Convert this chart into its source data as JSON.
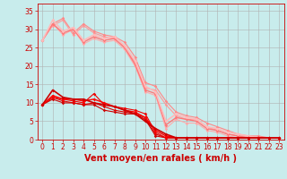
{
  "background_color": "#c8ecec",
  "grid_color": "#b0b0b0",
  "xlabel": "Vent moyen/en rafales ( km/h )",
  "xlim": [
    -0.5,
    23.5
  ],
  "ylim": [
    0,
    37
  ],
  "yticks": [
    0,
    5,
    10,
    15,
    20,
    25,
    30,
    35
  ],
  "xticks": [
    0,
    1,
    2,
    3,
    4,
    5,
    6,
    7,
    8,
    9,
    10,
    11,
    12,
    13,
    14,
    15,
    16,
    17,
    18,
    19,
    20,
    21,
    22,
    23
  ],
  "lines_dark": [
    {
      "x": [
        0,
        1,
        2,
        3,
        4,
        5,
        6,
        7,
        8,
        9,
        10,
        11,
        12,
        13,
        14,
        15,
        16,
        17,
        18,
        19,
        20,
        21,
        22,
        23
      ],
      "y": [
        9.5,
        11.0,
        10.0,
        10.0,
        9.5,
        9.5,
        8.0,
        7.5,
        7.0,
        7.0,
        5.5,
        1.0,
        0.5,
        0.5,
        0.5,
        0.5,
        0.5,
        0.5,
        0.5,
        0.5,
        0.5,
        0.5,
        0.5,
        0.5
      ],
      "color": "#cc0000",
      "lw": 0.8
    },
    {
      "x": [
        0,
        1,
        2,
        3,
        4,
        5,
        6,
        7,
        8,
        9,
        10,
        11,
        12,
        13,
        14,
        15,
        16,
        17,
        18,
        19,
        20,
        21,
        22,
        23
      ],
      "y": [
        9.5,
        11.5,
        10.5,
        10.0,
        9.5,
        10.0,
        9.0,
        8.0,
        7.5,
        7.0,
        6.0,
        1.5,
        0.5,
        0.5,
        0.5,
        0.5,
        0.5,
        0.5,
        0.5,
        0.5,
        0.5,
        0.5,
        0.5,
        0.5
      ],
      "color": "#dd0000",
      "lw": 0.8
    },
    {
      "x": [
        0,
        1,
        2,
        3,
        4,
        5,
        6,
        7,
        8,
        9,
        10,
        11,
        12,
        13,
        14,
        15,
        16,
        17,
        18,
        19,
        20,
        21,
        22,
        23
      ],
      "y": [
        9.5,
        11.5,
        11.0,
        10.5,
        10.0,
        12.5,
        9.5,
        9.0,
        8.5,
        8.0,
        7.0,
        2.0,
        0.5,
        0.5,
        0.5,
        0.5,
        0.5,
        0.5,
        0.5,
        0.5,
        0.5,
        0.5,
        0.5,
        0.5
      ],
      "color": "#ee0000",
      "lw": 0.8
    },
    {
      "x": [
        0,
        1,
        2,
        3,
        4,
        5,
        6,
        7,
        8,
        9,
        10,
        11,
        12,
        13,
        14,
        15,
        16,
        17,
        18,
        19,
        20,
        21,
        22,
        23
      ],
      "y": [
        9.5,
        12.0,
        11.0,
        11.0,
        10.5,
        11.0,
        10.0,
        9.0,
        8.0,
        7.5,
        6.0,
        2.5,
        1.0,
        0.5,
        0.5,
        0.5,
        0.5,
        0.5,
        0.5,
        0.5,
        0.5,
        0.5,
        0.5,
        0.5
      ],
      "color": "#ff0000",
      "lw": 1.0
    },
    {
      "x": [
        0,
        1,
        2,
        3,
        4,
        5,
        6,
        7,
        8,
        9,
        10,
        11,
        12,
        13,
        14,
        15,
        16,
        17,
        18,
        19,
        20,
        21,
        22,
        23
      ],
      "y": [
        9.5,
        13.5,
        11.5,
        11.0,
        11.0,
        10.0,
        9.5,
        9.0,
        8.0,
        7.0,
        5.0,
        3.0,
        1.5,
        0.5,
        0.5,
        0.5,
        0.5,
        0.5,
        0.5,
        0.5,
        0.5,
        0.5,
        0.5,
        0.5
      ],
      "color": "#cc0000",
      "lw": 1.2
    }
  ],
  "lines_light": [
    {
      "x": [
        0,
        1,
        2,
        3,
        4,
        5,
        6,
        7,
        8,
        9,
        10,
        11,
        12,
        13,
        14,
        15,
        16,
        17,
        18,
        19,
        20,
        21,
        22,
        23
      ],
      "y": [
        27.0,
        31.0,
        32.5,
        28.5,
        31.0,
        29.0,
        28.0,
        27.5,
        25.0,
        21.0,
        14.0,
        13.5,
        9.5,
        6.5,
        5.5,
        5.5,
        3.5,
        2.5,
        1.5,
        1.0,
        1.0,
        0.5,
        0.5,
        0.5
      ],
      "color": "#ff9999",
      "lw": 0.8
    },
    {
      "x": [
        0,
        1,
        2,
        3,
        4,
        5,
        6,
        7,
        8,
        9,
        10,
        11,
        12,
        13,
        14,
        15,
        16,
        17,
        18,
        19,
        20,
        21,
        22,
        23
      ],
      "y": [
        27.0,
        31.5,
        33.0,
        29.0,
        31.5,
        29.5,
        28.5,
        28.0,
        26.5,
        22.5,
        15.5,
        14.5,
        10.5,
        7.5,
        6.5,
        6.0,
        4.5,
        3.5,
        2.5,
        1.5,
        1.0,
        1.0,
        0.5,
        0.5
      ],
      "color": "#ff8888",
      "lw": 0.8
    },
    {
      "x": [
        0,
        1,
        2,
        3,
        4,
        5,
        6,
        7,
        8,
        9,
        10,
        11,
        12,
        13,
        14,
        15,
        16,
        17,
        18,
        19,
        20,
        21,
        22,
        23
      ],
      "y": [
        27.0,
        31.5,
        28.5,
        30.0,
        26.0,
        27.5,
        26.5,
        27.0,
        24.5,
        20.0,
        13.0,
        12.0,
        3.0,
        5.5,
        4.5,
        4.5,
        2.5,
        2.0,
        1.0,
        0.5,
        0.5,
        0.5,
        0.5,
        0.5
      ],
      "color": "#ffaaaa",
      "lw": 0.8
    },
    {
      "x": [
        0,
        1,
        2,
        3,
        4,
        5,
        6,
        7,
        8,
        9,
        10,
        11,
        12,
        13,
        14,
        15,
        16,
        17,
        18,
        19,
        20,
        21,
        22,
        23
      ],
      "y": [
        27.0,
        31.5,
        29.0,
        30.0,
        26.5,
        28.0,
        27.0,
        27.5,
        25.0,
        20.5,
        13.5,
        12.5,
        4.0,
        6.0,
        5.5,
        5.0,
        3.0,
        2.5,
        1.5,
        1.0,
        0.5,
        0.5,
        0.5,
        0.5
      ],
      "color": "#ff7777",
      "lw": 1.0
    },
    {
      "x": [
        0,
        1,
        2,
        3,
        4,
        5,
        6,
        7,
        8,
        9,
        10,
        11,
        12,
        13,
        14,
        15,
        16,
        17,
        18,
        19,
        20,
        21,
        22,
        23
      ],
      "y": [
        27.0,
        32.5,
        29.5,
        30.5,
        27.0,
        28.5,
        27.5,
        28.0,
        25.5,
        21.5,
        14.5,
        13.0,
        5.0,
        7.0,
        6.0,
        5.5,
        3.5,
        3.0,
        2.0,
        1.5,
        1.0,
        0.5,
        0.5,
        0.5
      ],
      "color": "#ffbbbb",
      "lw": 1.2
    }
  ],
  "marker": "D",
  "marker_size": 1.8,
  "xlabel_color": "#cc0000",
  "tick_color": "#cc0000",
  "xlabel_fontsize": 7,
  "tick_fontsize": 5.5
}
